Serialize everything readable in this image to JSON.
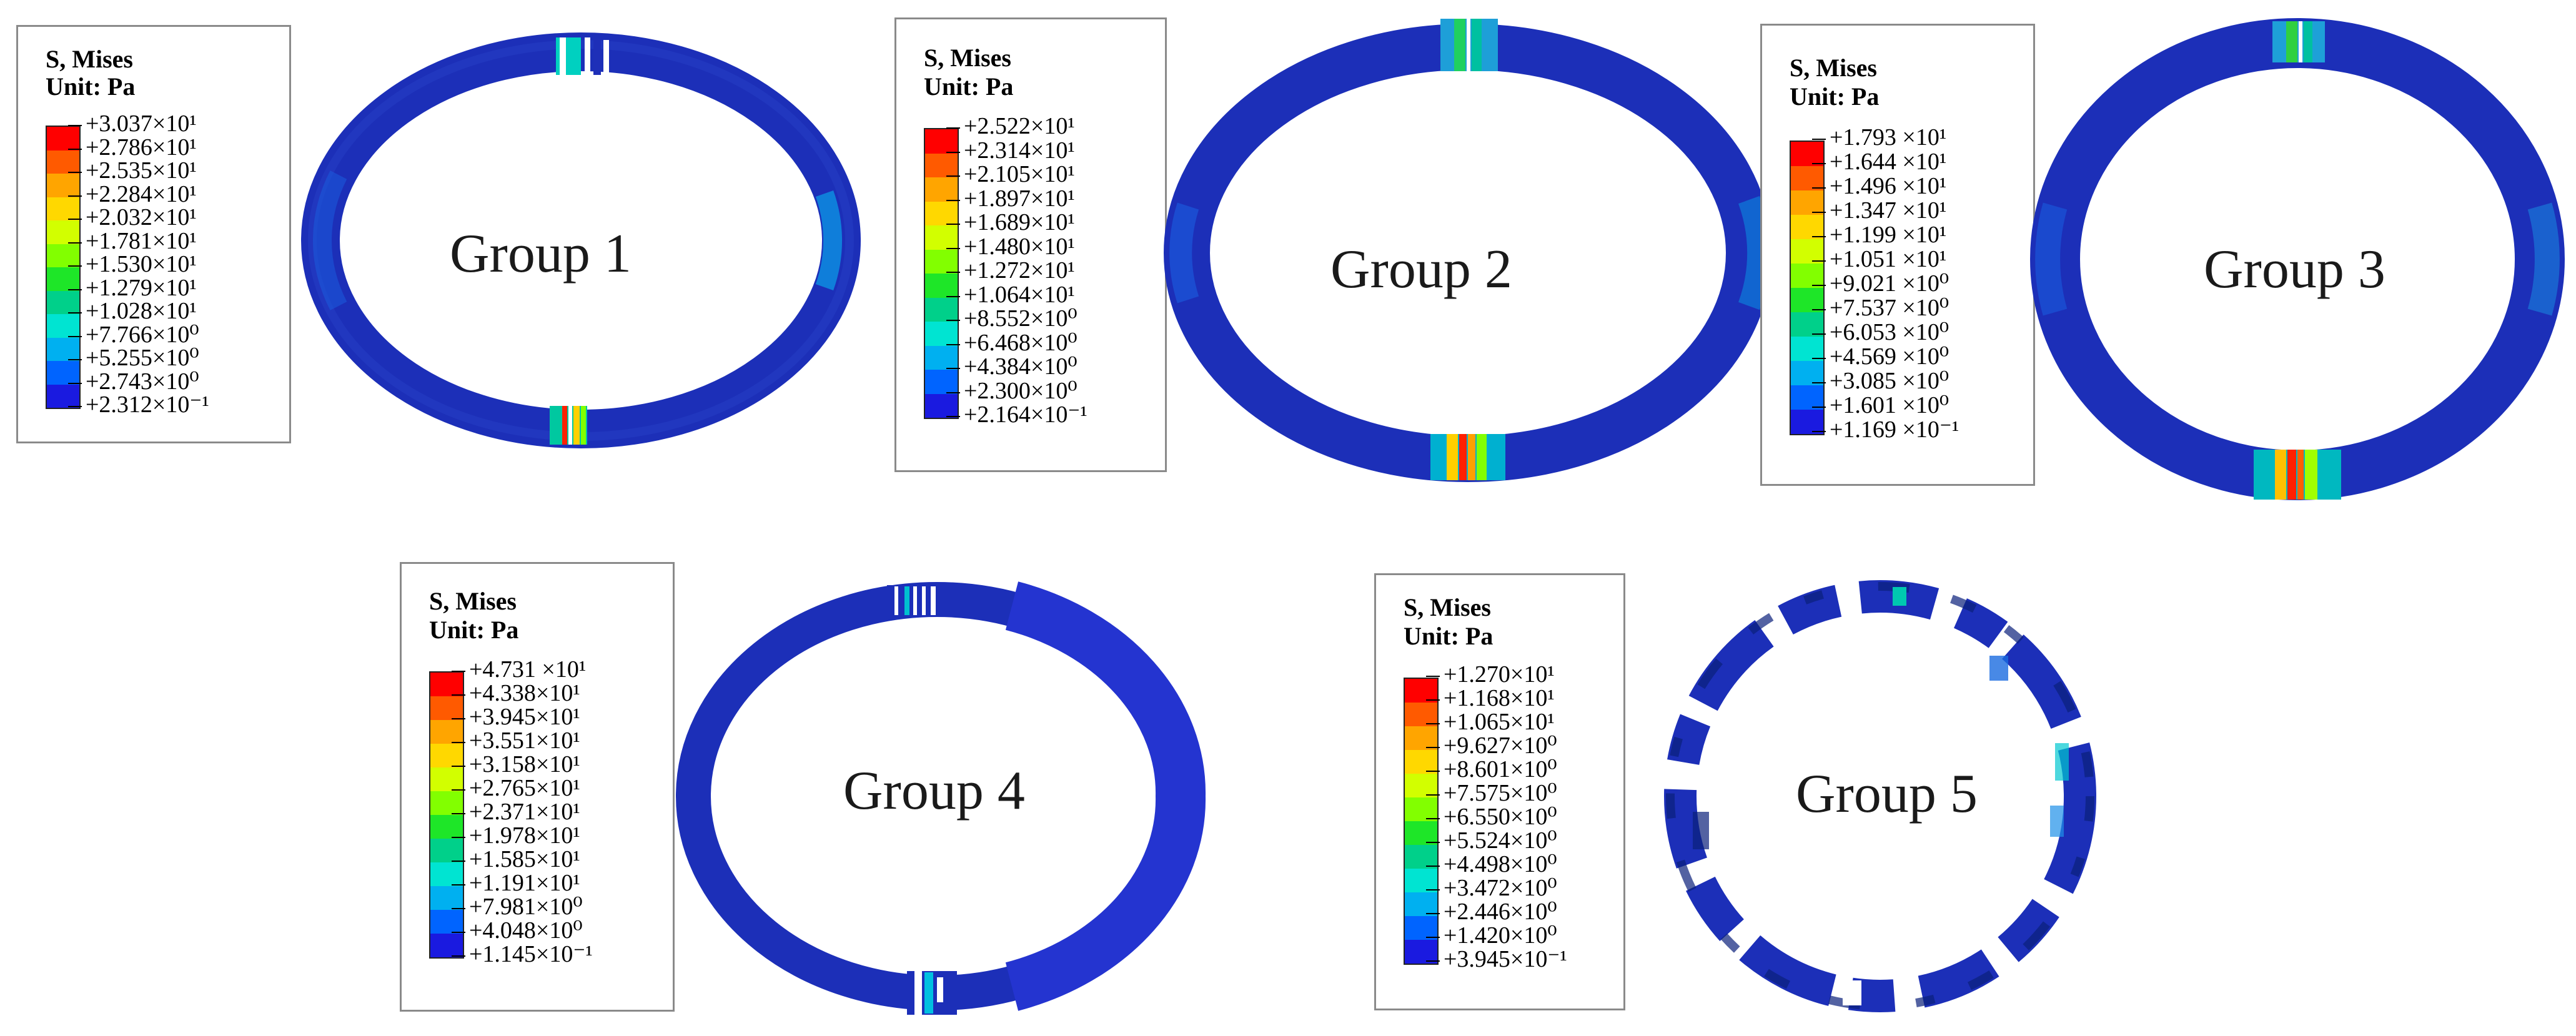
{
  "colormap": [
    "#ff0000",
    "#ff5a00",
    "#ffa500",
    "#ffd800",
    "#d2ff00",
    "#82ff00",
    "#1ee628",
    "#00d08a",
    "#00e4d2",
    "#00b0f0",
    "#0064ff",
    "#1a1ae0",
    "#0000c8"
  ],
  "ring_color": "#1c2fb8",
  "panels": [
    {
      "title": "S, Mises",
      "unit": "Unit: Pa",
      "group": "Group 1",
      "values": [
        "+3.037×10¹",
        "+2.786×10¹",
        "+2.535×10¹",
        "+2.284×10¹",
        "+2.032×10¹",
        "+1.781×10¹",
        "+1.530×10¹",
        "+1.279×10¹",
        "+1.028×10¹",
        "+7.766×10⁰",
        "+5.255×10⁰",
        "+2.743×10⁰",
        "+2.312×10⁻¹"
      ]
    },
    {
      "title": "S, Mises",
      "unit": "Unit: Pa",
      "group": "Group 2",
      "values": [
        "+2.522×10¹",
        "+2.314×10¹",
        "+2.105×10¹",
        "+1.897×10¹",
        "+1.689×10¹",
        "+1.480×10¹",
        "+1.272×10¹",
        "+1.064×10¹",
        "+8.552×10⁰",
        "+6.468×10⁰",
        "+4.384×10⁰",
        "+2.300×10⁰",
        "+2.164×10⁻¹"
      ]
    },
    {
      "title": "S, Mises",
      "unit": "Unit: Pa",
      "group": "Group 3",
      "values": [
        "+1.793 ×10¹",
        "+1.644 ×10¹",
        "+1.496 ×10¹",
        "+1.347 ×10¹",
        "+1.199 ×10¹",
        "+1.051 ×10¹",
        "+9.021 ×10⁰",
        "+7.537 ×10⁰",
        "+6.053 ×10⁰",
        "+4.569 ×10⁰",
        "+3.085 ×10⁰",
        "+1.601 ×10⁰",
        "+1.169 ×10⁻¹"
      ]
    },
    {
      "title": "S, Mises",
      "unit": "Unit: Pa",
      "group": "Group 4",
      "values": [
        "+4.731 ×10¹",
        "+4.338×10¹",
        "+3.945×10¹",
        "+3.551×10¹",
        "+3.158×10¹",
        "+2.765×10¹",
        "+2.371×10¹",
        "+1.978×10¹",
        "+1.585×10¹",
        "+1.191×10¹",
        "+7.981×10⁰",
        "+4.048×10⁰",
        "+1.145×10⁻¹"
      ]
    },
    {
      "title": "S, Mises",
      "unit": "Unit: Pa",
      "group": "Group 5",
      "values": [
        "+1.270×10¹",
        "+1.168×10¹",
        "+1.065×10¹",
        "+9.627×10⁰",
        "+8.601×10⁰",
        "+7.575×10⁰",
        "+6.550×10⁰",
        "+5.524×10⁰",
        "+4.498×10⁰",
        "+3.472×10⁰",
        "+2.446×10⁰",
        "+1.420×10⁰",
        "+3.945×10⁻¹"
      ]
    }
  ]
}
